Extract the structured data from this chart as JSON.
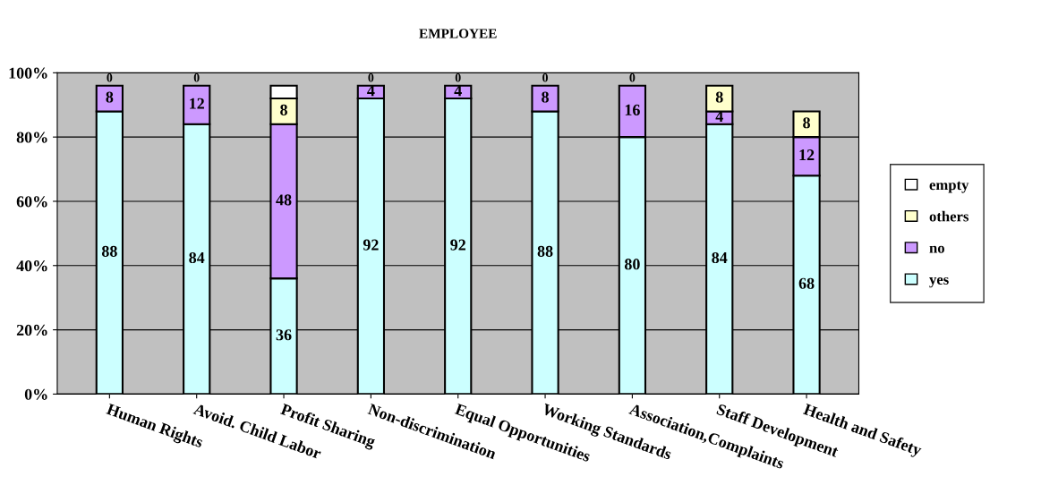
{
  "chart_data": {
    "type": "bar",
    "title": "EMPLOYEE",
    "stacked": true,
    "categories": [
      "Human Rights",
      "Avoid. Child Labor",
      "Profit Sharing",
      "Non-discrimination",
      "Equal Opportunities",
      "Working Standards",
      "Association,Complaints",
      "Staff Development",
      "Health and Safety"
    ],
    "series": [
      {
        "name": "yes",
        "color": "#ccffff",
        "values": [
          88,
          84,
          36,
          92,
          92,
          88,
          80,
          84,
          68
        ],
        "value_labels": [
          "88",
          "84",
          "36",
          "92",
          "92",
          "88",
          "80",
          "84",
          "68"
        ]
      },
      {
        "name": "no",
        "color": "#cc99ff",
        "values": [
          8,
          12,
          48,
          4,
          4,
          8,
          16,
          4,
          12
        ],
        "value_labels": [
          "8",
          "12",
          "48",
          "4",
          "4",
          "8",
          "16",
          "4",
          "12"
        ]
      },
      {
        "name": "others",
        "color": "#ffffcc",
        "values": [
          0,
          0,
          8,
          0,
          0,
          0,
          0,
          8,
          8
        ],
        "value_labels": [
          "0",
          "0",
          "8",
          "0",
          "0",
          "0",
          "0",
          "8",
          "8"
        ]
      },
      {
        "name": "empty",
        "color": "#ffffff",
        "values": [
          0,
          0,
          4,
          0,
          0,
          0,
          0,
          0,
          0
        ]
      }
    ],
    "ylim": [
      0,
      100
    ],
    "yticks": [
      {
        "value": 0,
        "label": "0%"
      },
      {
        "value": 20,
        "label": "20%"
      },
      {
        "value": 40,
        "label": "40%"
      },
      {
        "value": 60,
        "label": "60%"
      },
      {
        "value": 80,
        "label": "80%"
      },
      {
        "value": 100,
        "label": "100%"
      }
    ],
    "grid": "y",
    "legend": "right"
  }
}
